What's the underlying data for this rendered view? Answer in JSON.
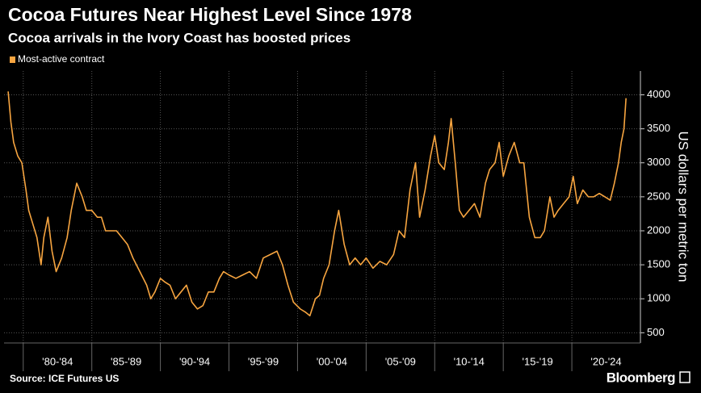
{
  "chart_data": {
    "type": "line",
    "title": "Cocoa Futures Near Highest Level Since 1978",
    "subtitle": "Cocoa arrivals in the Ivory Coast has boosted prices",
    "y_axis_label": "US dollars per metric ton",
    "source": "Source: ICE Futures US",
    "brand": "Bloomberg",
    "legend_position": "top-left",
    "grid": true,
    "xlim": [
      1978.6,
      2025
    ],
    "xticks": [
      {
        "value": 1980,
        "label": "'80-'84"
      },
      {
        "value": 1985,
        "label": "'85-'89"
      },
      {
        "value": 1990,
        "label": "'90-'94"
      },
      {
        "value": 1995,
        "label": "'95-'99"
      },
      {
        "value": 2000,
        "label": "'00-'04"
      },
      {
        "value": 2005,
        "label": "'05-'09"
      },
      {
        "value": 2010,
        "label": "'10-'14"
      },
      {
        "value": 2015,
        "label": "'15-'19"
      },
      {
        "value": 2020,
        "label": "'20-'24"
      }
    ],
    "ylim": [
      350,
      4350
    ],
    "yticks": [
      500,
      1000,
      1500,
      2000,
      2500,
      3000,
      3500,
      4000
    ],
    "x": [
      1978.9,
      1979.1,
      1979.3,
      1979.6,
      1979.9,
      1980.2,
      1980.4,
      1980.7,
      1981.0,
      1981.3,
      1981.5,
      1981.8,
      1982.1,
      1982.4,
      1982.8,
      1983.2,
      1983.5,
      1983.9,
      1984.3,
      1984.6,
      1985.0,
      1985.4,
      1985.7,
      1986.0,
      1986.4,
      1986.8,
      1987.2,
      1987.6,
      1988.0,
      1988.5,
      1989.0,
      1989.3,
      1989.6,
      1990.0,
      1990.3,
      1990.7,
      1991.1,
      1991.5,
      1991.9,
      1992.3,
      1992.7,
      1993.1,
      1993.5,
      1993.9,
      1994.3,
      1994.6,
      1995.0,
      1995.5,
      1996.0,
      1996.5,
      1997.0,
      1997.5,
      1998.0,
      1998.5,
      1998.9,
      1999.3,
      1999.7,
      2000.2,
      2000.6,
      2000.9,
      2001.3,
      2001.6,
      2001.9,
      2002.3,
      2002.7,
      2003.0,
      2003.4,
      2003.8,
      2004.2,
      2004.6,
      2005.0,
      2005.5,
      2006.0,
      2006.5,
      2007.0,
      2007.4,
      2007.8,
      2008.2,
      2008.6,
      2008.9,
      2009.3,
      2009.7,
      2010.0,
      2010.3,
      2010.7,
      2011.0,
      2011.2,
      2011.5,
      2011.8,
      2012.1,
      2012.5,
      2012.9,
      2013.3,
      2013.7,
      2014.0,
      2014.4,
      2014.7,
      2015.0,
      2015.4,
      2015.8,
      2016.2,
      2016.5,
      2016.9,
      2017.3,
      2017.7,
      2018.0,
      2018.4,
      2018.7,
      2019.0,
      2019.4,
      2019.8,
      2020.1,
      2020.4,
      2020.8,
      2021.2,
      2021.6,
      2022.0,
      2022.4,
      2022.8,
      2023.1,
      2023.4,
      2023.6,
      2023.8,
      2023.95
    ],
    "series": [
      {
        "name": "Most-active contract",
        "color": "#f7a540",
        "values": [
          4050,
          3600,
          3300,
          3100,
          3000,
          2600,
          2300,
          2100,
          1900,
          1500,
          1900,
          2200,
          1700,
          1400,
          1600,
          1900,
          2300,
          2700,
          2500,
          2300,
          2300,
          2200,
          2200,
          2000,
          2000,
          2000,
          1900,
          1800,
          1600,
          1400,
          1200,
          1000,
          1100,
          1300,
          1250,
          1200,
          1000,
          1100,
          1200,
          950,
          850,
          900,
          1100,
          1100,
          1300,
          1400,
          1350,
          1300,
          1350,
          1400,
          1300,
          1600,
          1650,
          1700,
          1500,
          1200,
          950,
          850,
          800,
          750,
          1000,
          1050,
          1300,
          1500,
          2000,
          2300,
          1800,
          1500,
          1600,
          1500,
          1600,
          1450,
          1550,
          1500,
          1650,
          2000,
          1900,
          2600,
          3000,
          2200,
          2600,
          3100,
          3400,
          3000,
          2900,
          3300,
          3650,
          3000,
          2300,
          2200,
          2300,
          2400,
          2200,
          2700,
          2900,
          3000,
          3300,
          2800,
          3100,
          3300,
          3000,
          3000,
          2200,
          1900,
          1900,
          2000,
          2500,
          2200,
          2300,
          2400,
          2500,
          2800,
          2400,
          2600,
          2500,
          2500,
          2550,
          2500,
          2450,
          2700,
          3000,
          3300,
          3500,
          3950
        ]
      }
    ]
  }
}
